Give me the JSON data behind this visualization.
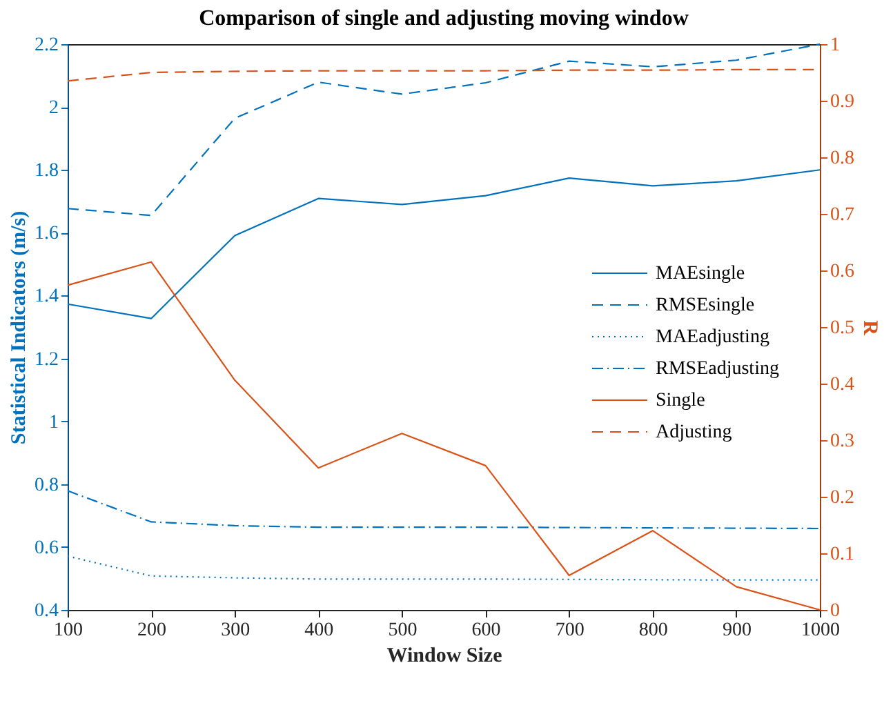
{
  "chart_data": {
    "type": "line",
    "title": "Comparison of single and adjusting moving window",
    "xlabel": "Window Size",
    "ylabel": "Statistical Indicators (m/s)",
    "y2label": "R",
    "x": [
      100,
      200,
      300,
      400,
      500,
      600,
      700,
      800,
      900,
      1000
    ],
    "xlim": [
      100,
      1000
    ],
    "xticks": [
      100,
      200,
      300,
      400,
      500,
      600,
      700,
      800,
      900,
      1000
    ],
    "ylim": [
      0.4,
      2.2
    ],
    "yticks": [
      0.4,
      0.6,
      0.8,
      1,
      1.2,
      1.4,
      1.6,
      1.8,
      2,
      2.2
    ],
    "y2lim": [
      0,
      1
    ],
    "y2ticks": [
      0,
      0.1,
      0.2,
      0.3,
      0.4,
      0.5,
      0.6,
      0.7,
      0.8,
      0.9,
      1
    ],
    "grid": false,
    "legend": "right",
    "marker": "none",
    "series": [
      {
        "name": "MAEsingle",
        "color": "#0072bd",
        "line_style": "solid",
        "values": [
          1.373,
          1.327,
          1.591,
          1.709,
          1.69,
          1.718,
          1.774,
          1.749,
          1.765,
          1.8
        ]
      },
      {
        "name": "RMSEsingle",
        "color": "#0072bd",
        "line_style": "dashed",
        "values": [
          1.677,
          1.655,
          1.964,
          2.079,
          2.041,
          2.077,
          2.146,
          2.128,
          2.149,
          2.2
        ]
      },
      {
        "name": "MAEadjusting",
        "color": "#0072bd",
        "line_style": "dotted",
        "values": [
          0.571,
          0.508,
          0.502,
          0.498,
          0.498,
          0.498,
          0.497,
          0.496,
          0.495,
          0.495
        ]
      },
      {
        "name": "RMSEadjusting",
        "color": "#0072bd",
        "line_style": "dashdot",
        "values": [
          0.779,
          0.68,
          0.668,
          0.663,
          0.663,
          0.663,
          0.662,
          0.661,
          0.66,
          0.659
        ]
      },
      {
        "name": "Single",
        "color": "#d95319",
        "line_style": "solid",
        "axis": "y2",
        "values": [
          0.574,
          0.615,
          0.406,
          0.251,
          0.312,
          0.255,
          0.061,
          0.14,
          0.041,
          0
        ]
      },
      {
        "name": "Adjusting",
        "color": "#d95319",
        "line_style": "dashed",
        "axis": "y2",
        "values": [
          0.935,
          0.95,
          0.952,
          0.953,
          0.953,
          0.953,
          0.954,
          0.954,
          0.955,
          0.955
        ]
      }
    ]
  }
}
